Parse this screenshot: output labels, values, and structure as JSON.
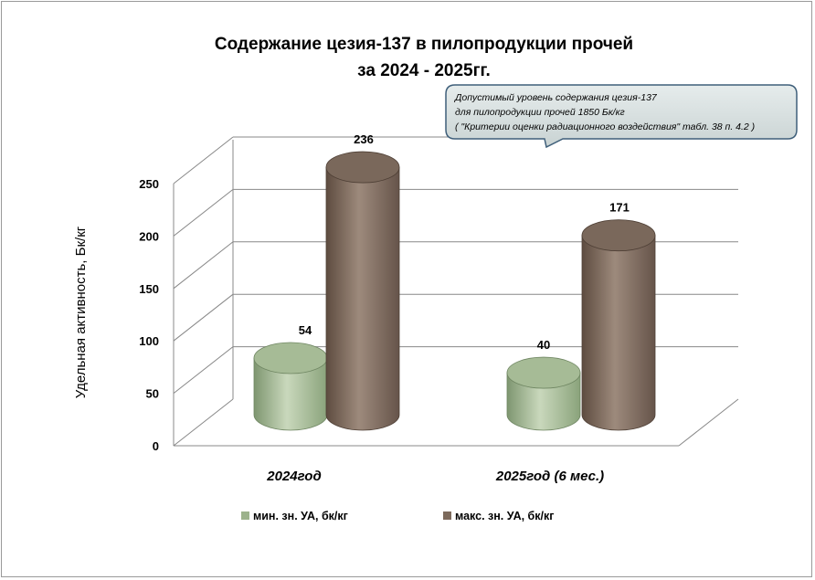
{
  "chart_data": {
    "type": "bar",
    "title_lines": [
      "Содержание цезия-137 в пилопродукции прочей",
      "за 2024 - 2025гг."
    ],
    "ylabel": "Удельная активность, Бк/кг",
    "ylim": [
      0,
      250
    ],
    "yticks": [
      0,
      50,
      100,
      150,
      200,
      250
    ],
    "grid": true,
    "legend_position": "bottom",
    "categories": [
      "2024год",
      "2025год (6 мес.)"
    ],
    "series": [
      {
        "name": "мин. зн. УА, бк/кг",
        "values": [
          54,
          40
        ],
        "color": "#9cb28c"
      },
      {
        "name": "макс. зн. УА, бк/кг",
        "values": [
          236,
          171
        ],
        "color": "#7d6a5c"
      }
    ],
    "annotation": {
      "lines": [
        "Допустимый уровень содержания цезия-137",
        "для пилопродукции  прочей 1850 Бк/кг",
        "( \"Критерии оценки радиационного воздействия\"  табл. 38 п. 4.2 )"
      ]
    }
  }
}
